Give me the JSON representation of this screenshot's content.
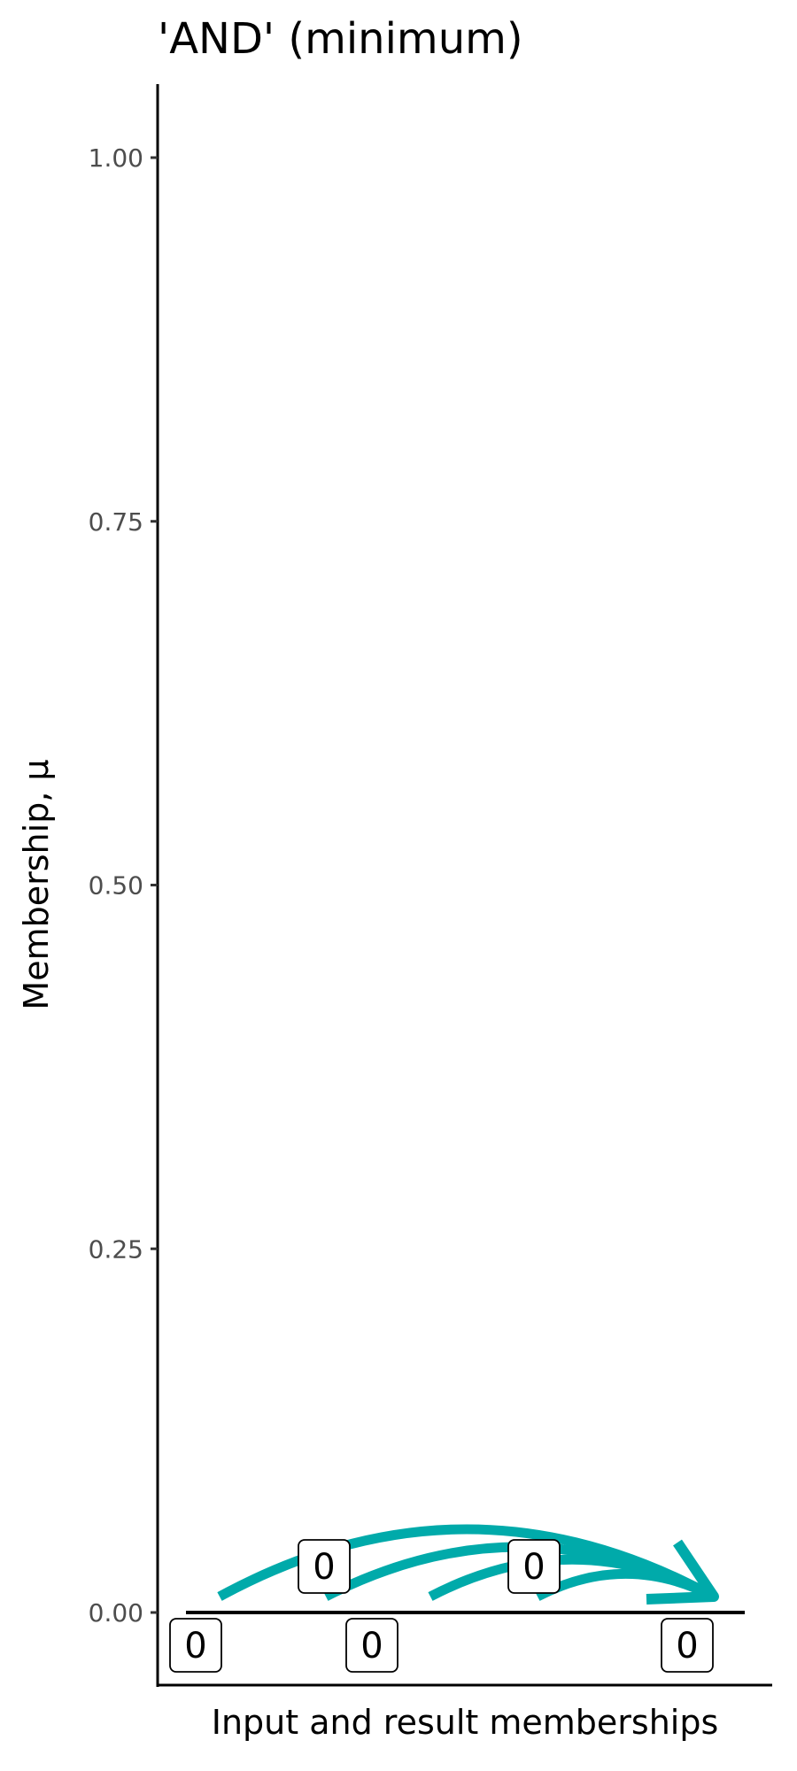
{
  "chart_data": {
    "type": "line",
    "title": "'AND' (minimum)",
    "xlabel": "Input and result memberships",
    "ylabel": "Membership, μ",
    "ylim": [
      -0.05,
      1.05
    ],
    "yticks": [
      0.0,
      0.25,
      0.5,
      0.75,
      1.0
    ],
    "ytick_labels": [
      "0.00",
      "0.25",
      "0.50",
      "0.75",
      "1.00"
    ],
    "grid": false,
    "inputs": [
      {
        "label": "0",
        "value": 0,
        "label_side": "below"
      },
      {
        "label": "0",
        "value": 0,
        "label_side": "above"
      },
      {
        "label": "0",
        "value": 0,
        "label_side": "below"
      },
      {
        "label": "0",
        "value": 0,
        "label_side": "above"
      }
    ],
    "result": {
      "label": "0",
      "value": 0,
      "label_side": "below"
    },
    "arrow_color": "#00AAAA"
  }
}
